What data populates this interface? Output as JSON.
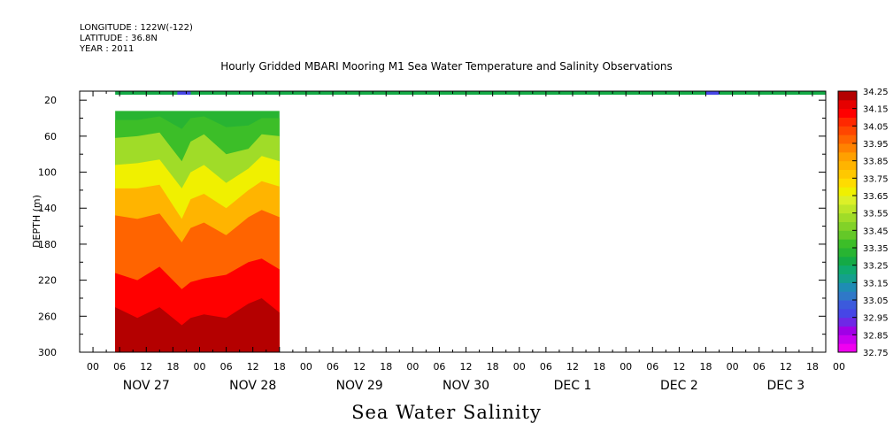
{
  "header": {
    "longitude": "LONGITUDE : 122W(-122)",
    "latitude": "LATITUDE : 36.8N",
    "year": "YEAR : 2011"
  },
  "chart_data": {
    "type": "heatmap",
    "title": "Hourly Gridded MBARI Mooring M1 Sea Water Temperature and Salinity Observations",
    "caption": "Sea Water Salinity",
    "xlabel": "",
    "ylabel": "DEPTH (m)",
    "ylim": [
      300,
      10
    ],
    "y_ticks": [
      20,
      60,
      100,
      140,
      180,
      220,
      260,
      300
    ],
    "x_hour_labels": [
      "00",
      "06",
      "12",
      "18",
      "00",
      "06",
      "12",
      "18",
      "00",
      "06",
      "12",
      "18",
      "00",
      "06",
      "12",
      "18",
      "00",
      "06",
      "12",
      "18",
      "00",
      "06",
      "12",
      "18",
      "00",
      "06",
      "12",
      "18",
      "00"
    ],
    "x_day_labels": [
      "NOV 27",
      "NOV 28",
      "NOV 29",
      "NOV 30",
      "DEC  1",
      "DEC  2",
      "DEC  3"
    ],
    "xlim_hours": [
      -3,
      165
    ],
    "colorbar": {
      "levels": [
        32.75,
        32.8,
        32.85,
        32.9,
        32.95,
        33.0,
        33.05,
        33.1,
        33.15,
        33.2,
        33.25,
        33.3,
        33.35,
        33.4,
        33.45,
        33.5,
        33.55,
        33.6,
        33.65,
        33.7,
        33.75,
        33.8,
        33.85,
        33.9,
        33.95,
        34.0,
        34.05,
        34.1,
        34.15,
        34.2,
        34.25
      ],
      "labels": [
        "34.25",
        "34.15",
        "34.05",
        "33.95",
        "33.85",
        "33.75",
        "33.65",
        "33.55",
        "33.45",
        "33.35",
        "33.25",
        "33.15",
        "33.05",
        "32.95",
        "32.85",
        "32.75"
      ],
      "colors": [
        "#f000f0",
        "#c800f0",
        "#a000e6",
        "#6e28e6",
        "#4646e6",
        "#3c5adc",
        "#2f78c8",
        "#1e8cb4",
        "#14a08c",
        "#0faa6e",
        "#14aa46",
        "#28b432",
        "#3cbe28",
        "#64c828",
        "#82d228",
        "#a0dc28",
        "#bee628",
        "#dcf028",
        "#f0f000",
        "#ffdc00",
        "#ffc800",
        "#ffb400",
        "#ffa000",
        "#ff8200",
        "#ff6400",
        "#ff4600",
        "#ff2800",
        "#ff0000",
        "#e60000",
        "#b40000"
      ]
    },
    "surface_band": {
      "depth_range": [
        10,
        14
      ],
      "hours_range": [
        5,
        165
      ],
      "value": 33.25,
      "low_patches": [
        {
          "hours": [
            19,
            22
          ],
          "value": 32.95
        },
        {
          "hours": [
            138,
            141
          ],
          "value": 32.95
        }
      ]
    },
    "profile_block": {
      "hours_range": [
        5,
        42
      ],
      "depth_range": [
        32,
        300
      ],
      "x_hours": [
        5,
        10,
        15,
        20,
        22,
        25,
        30,
        35,
        38,
        42
      ],
      "isohaline_depths": {
        "33.35": [
          42,
          42,
          38,
          52,
          40,
          38,
          50,
          48,
          40,
          40
        ],
        "33.5": [
          62,
          60,
          56,
          88,
          66,
          58,
          80,
          74,
          58,
          60
        ],
        "33.65": [
          92,
          90,
          86,
          118,
          100,
          92,
          112,
          96,
          82,
          88
        ],
        "33.8": [
          118,
          118,
          114,
          152,
          130,
          124,
          140,
          120,
          110,
          116
        ],
        "33.95": [
          148,
          152,
          146,
          178,
          162,
          156,
          170,
          150,
          142,
          150
        ],
        "34.1": [
          212,
          220,
          205,
          230,
          222,
          218,
          214,
          200,
          196,
          208
        ],
        "34.2": [
          250,
          262,
          250,
          270,
          262,
          258,
          262,
          246,
          240,
          256
        ]
      }
    }
  }
}
